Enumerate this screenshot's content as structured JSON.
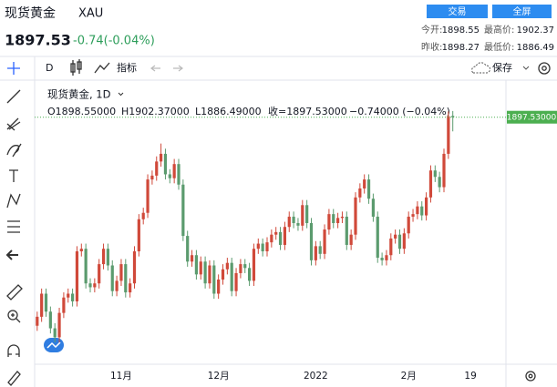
{
  "header": {
    "title": "现货黄金",
    "symbol": "XAU",
    "price": "1897.53",
    "change": "-0.74(-0.04%)",
    "buttons": [
      "交易",
      "全屏"
    ],
    "stats": [
      [
        "今开:",
        "1898.55",
        "最高价:",
        "1902.37"
      ],
      [
        "昨收:",
        "1898.27",
        "最低价:",
        "1886.49"
      ]
    ]
  },
  "toolbar": {
    "interval": "D",
    "indicators": "指标",
    "save": "保存"
  },
  "chart_data": {
    "type": "candlestick",
    "legend_title": "现货黄金, 1D",
    "ohlc_legend": [
      "O1898.55000",
      "H1902.37000",
      "L1886.49000",
      "收=1897.53000",
      "−0.74000 (−0.04%)"
    ],
    "up_color": "#d0493a",
    "down_color": "#5b9b6e",
    "last_price": {
      "value": 1897.53,
      "label": "1897.53000"
    },
    "last_price_color": "#4caf50",
    "ylim": [
      1705,
      1925
    ],
    "categories": [
      null,
      null,
      null,
      null,
      null,
      null,
      null,
      null,
      null,
      null,
      null,
      null,
      null,
      null,
      null,
      null,
      null,
      null,
      null,
      "11月",
      null,
      null,
      null,
      null,
      null,
      null,
      null,
      null,
      null,
      null,
      null,
      null,
      null,
      null,
      null,
      null,
      null,
      null,
      null,
      null,
      null,
      "12月",
      null,
      null,
      null,
      null,
      null,
      null,
      null,
      null,
      null,
      null,
      null,
      null,
      null,
      null,
      null,
      null,
      null,
      null,
      null,
      null,
      null,
      "2022",
      null,
      null,
      null,
      null,
      null,
      null,
      null,
      null,
      null,
      null,
      null,
      null,
      null,
      null,
      null,
      null,
      null,
      null,
      null,
      null,
      "2月",
      null,
      null,
      null,
      null,
      null,
      null,
      null,
      null,
      null,
      null,
      null,
      null,
      null,
      "19"
    ],
    "open": [
      1735,
      1742,
      1760,
      1746,
      1733,
      1726,
      1745,
      1757,
      1760,
      1754,
      1793,
      1795,
      1768,
      1765,
      1768,
      1783,
      1795,
      1782,
      1762,
      1770,
      1783,
      1761,
      1768,
      1793,
      1818,
      1823,
      1849,
      1852,
      1863,
      1869,
      1853,
      1850,
      1861,
      1845,
      1805,
      1785,
      1790,
      1775,
      1785,
      1768,
      1782,
      1760,
      1771,
      1779,
      1784,
      1762,
      1776,
      1783,
      1780,
      1770,
      1795,
      1799,
      1793,
      1800,
      1806,
      1808,
      1798,
      1812,
      1820,
      1815,
      1813,
      1829,
      1815,
      1786,
      1797,
      1791,
      1810,
      1822,
      1815,
      1819,
      1820,
      1798,
      1806,
      1835,
      1842,
      1849,
      1834,
      1820,
      1788,
      1786,
      1790,
      1803,
      1806,
      1795,
      1807,
      1820,
      1822,
      1828,
      1821,
      1835,
      1856,
      1851,
      1843,
      1869,
      1898.55,
      null,
      null,
      null,
      null
    ],
    "high": [
      1746,
      1764,
      1764,
      1750,
      1737,
      1749,
      1761,
      1764,
      1764,
      1797,
      1799,
      1799,
      1772,
      1772,
      1787,
      1799,
      1799,
      1786,
      1774,
      1787,
      1787,
      1772,
      1797,
      1822,
      1827,
      1853,
      1856,
      1867,
      1877,
      1873,
      1857,
      1865,
      1865,
      1849,
      1809,
      1794,
      1794,
      1789,
      1789,
      1786,
      1786,
      1775,
      1783,
      1788,
      1788,
      1780,
      1787,
      1787,
      1784,
      1799,
      1803,
      1803,
      1804,
      1810,
      1812,
      1812,
      1816,
      1824,
      1824,
      1819,
      1833,
      1833,
      1819,
      1801,
      1801,
      1814,
      1826,
      1826,
      1823,
      1824,
      1824,
      1810,
      1839,
      1846,
      1853,
      1853,
      1838,
      1824,
      1792,
      1794,
      1807,
      1810,
      1810,
      1811,
      1824,
      1826,
      1832,
      1832,
      1839,
      1860,
      1860,
      1855,
      1873,
      1902,
      1902.37,
      null,
      null,
      null,
      null
    ],
    "low": [
      1731,
      1738,
      1742,
      1729,
      1722,
      1722,
      1741,
      1753,
      1750,
      1750,
      1789,
      1764,
      1761,
      1761,
      1764,
      1779,
      1778,
      1758,
      1758,
      1766,
      1757,
      1757,
      1764,
      1789,
      1814,
      1819,
      1845,
      1848,
      1859,
      1849,
      1846,
      1846,
      1841,
      1801,
      1781,
      1781,
      1771,
      1771,
      1764,
      1764,
      1756,
      1756,
      1767,
      1775,
      1758,
      1758,
      1772,
      1776,
      1766,
      1766,
      1791,
      1789,
      1789,
      1796,
      1802,
      1794,
      1794,
      1808,
      1811,
      1809,
      1809,
      1811,
      1782,
      1782,
      1787,
      1787,
      1806,
      1811,
      1811,
      1815,
      1794,
      1794,
      1802,
      1831,
      1838,
      1830,
      1816,
      1784,
      1782,
      1782,
      1786,
      1799,
      1791,
      1791,
      1803,
      1816,
      1818,
      1817,
      1817,
      1831,
      1847,
      1839,
      1839,
      1865,
      1886.49,
      null,
      null,
      null,
      null
    ],
    "close": [
      1742,
      1760,
      1746,
      1733,
      1726,
      1745,
      1757,
      1760,
      1754,
      1793,
      1795,
      1768,
      1765,
      1768,
      1783,
      1795,
      1782,
      1762,
      1770,
      1783,
      1761,
      1768,
      1793,
      1818,
      1823,
      1849,
      1852,
      1863,
      1869,
      1853,
      1850,
      1861,
      1845,
      1805,
      1785,
      1790,
      1775,
      1785,
      1768,
      1782,
      1760,
      1771,
      1779,
      1784,
      1762,
      1776,
      1783,
      1780,
      1770,
      1795,
      1799,
      1793,
      1800,
      1806,
      1808,
      1798,
      1812,
      1820,
      1815,
      1813,
      1829,
      1815,
      1786,
      1797,
      1791,
      1810,
      1822,
      1815,
      1819,
      1820,
      1798,
      1806,
      1835,
      1842,
      1849,
      1834,
      1820,
      1788,
      1786,
      1790,
      1803,
      1806,
      1795,
      1807,
      1820,
      1822,
      1828,
      1821,
      1835,
      1856,
      1851,
      1843,
      1869,
      1898.27,
      1897.53,
      null,
      null,
      null,
      null
    ]
  }
}
